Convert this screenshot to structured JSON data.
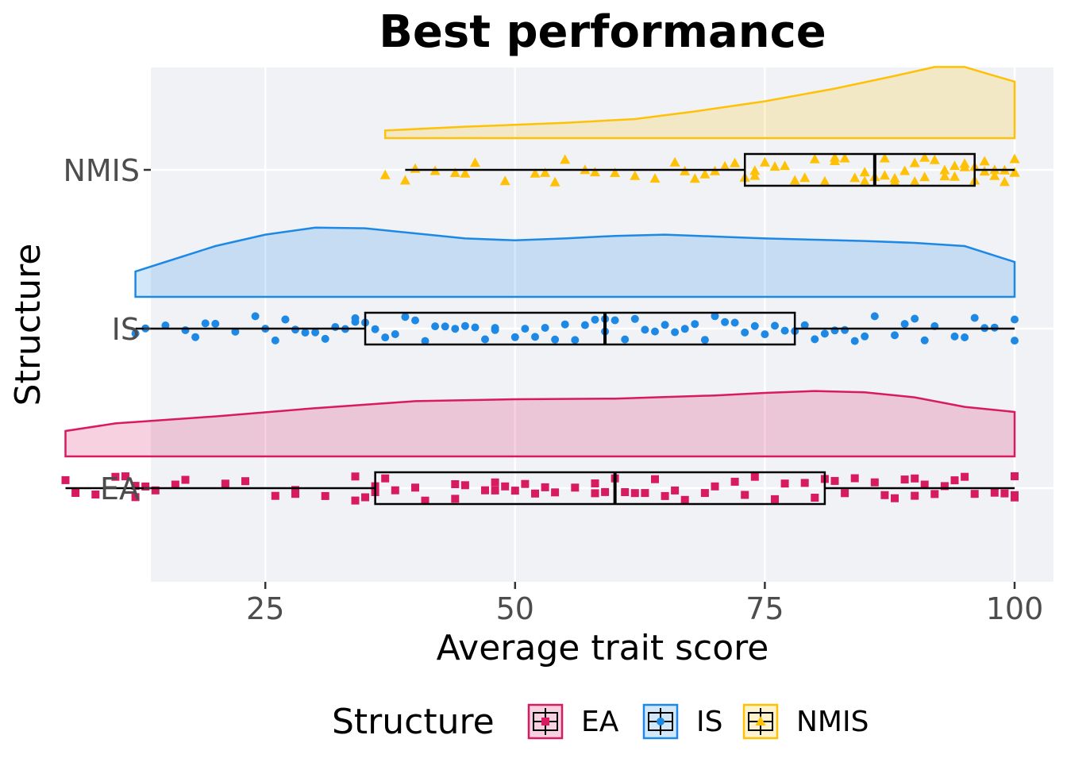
{
  "chart_data": {
    "type": "raincloud",
    "title": "Best performance",
    "xlabel": "Average trait score",
    "ylabel": "Structure",
    "xlim": [
      0,
      102
    ],
    "x_ticks": [
      25,
      50,
      75,
      100
    ],
    "x_tick_labels": [
      "25",
      "50",
      "75",
      "100"
    ],
    "categories": [
      "EA",
      "IS",
      "NMIS"
    ],
    "grid": true,
    "legend": {
      "title": "Structure",
      "placement": "bottom",
      "entries": [
        "EA",
        "IS",
        "NMIS"
      ]
    },
    "series": [
      {
        "name": "EA",
        "color": "#d81b60",
        "marker": "square",
        "box": {
          "min": 5,
          "q1": 36,
          "median": 60,
          "q3": 81,
          "max": 100
        },
        "density": [
          [
            5,
            0.4
          ],
          [
            10,
            0.52
          ],
          [
            20,
            0.63
          ],
          [
            30,
            0.76
          ],
          [
            40,
            0.87
          ],
          [
            50,
            0.9
          ],
          [
            60,
            0.91
          ],
          [
            70,
            0.96
          ],
          [
            75,
            1.0
          ],
          [
            80,
            1.03
          ],
          [
            85,
            1.01
          ],
          [
            90,
            0.93
          ],
          [
            95,
            0.78
          ],
          [
            100,
            0.7
          ]
        ],
        "points": [
          5,
          6,
          8,
          10,
          11,
          12,
          12,
          13,
          14,
          16,
          17,
          21,
          23,
          26,
          28,
          28,
          28,
          31,
          34,
          34,
          35,
          36,
          36,
          37,
          38,
          40,
          41,
          44,
          44,
          45,
          47,
          48,
          48,
          49,
          50,
          51,
          52,
          53,
          54,
          56,
          58,
          58,
          59,
          60,
          61,
          62,
          63,
          64,
          65,
          66,
          67,
          69,
          70,
          72,
          73,
          74,
          76,
          77,
          79,
          80,
          81,
          82,
          83,
          84,
          86,
          87,
          88,
          89,
          90,
          90,
          91,
          92,
          93,
          94,
          95,
          96,
          98,
          99,
          100,
          100,
          100
        ]
      },
      {
        "name": "IS",
        "color": "#1e88e5",
        "marker": "circle",
        "box": {
          "min": 12,
          "q1": 35,
          "median": 59,
          "q3": 78,
          "max": 100
        },
        "density": [
          [
            12,
            0.4
          ],
          [
            15,
            0.55
          ],
          [
            20,
            0.8
          ],
          [
            25,
            0.98
          ],
          [
            30,
            1.09
          ],
          [
            35,
            1.08
          ],
          [
            40,
            1.0
          ],
          [
            45,
            0.92
          ],
          [
            50,
            0.89
          ],
          [
            55,
            0.92
          ],
          [
            60,
            0.96
          ],
          [
            65,
            0.98
          ],
          [
            70,
            0.95
          ],
          [
            75,
            0.92
          ],
          [
            80,
            0.9
          ],
          [
            85,
            0.88
          ],
          [
            90,
            0.85
          ],
          [
            95,
            0.8
          ],
          [
            100,
            0.55
          ]
        ],
        "points": [
          12,
          13,
          15,
          17,
          18,
          19,
          20,
          22,
          24,
          25,
          26,
          27,
          27,
          28,
          29,
          30,
          31,
          32,
          33,
          34,
          34,
          35,
          36,
          37,
          38,
          39,
          40,
          41,
          42,
          43,
          44,
          45,
          46,
          47,
          48,
          48,
          50,
          51,
          52,
          53,
          54,
          55,
          56,
          57,
          58,
          59,
          59,
          60,
          61,
          62,
          63,
          64,
          65,
          66,
          67,
          68,
          69,
          70,
          71,
          72,
          73,
          74,
          75,
          76,
          77,
          78,
          79,
          80,
          81,
          82,
          83,
          84,
          85,
          86,
          88,
          89,
          90,
          91,
          92,
          94,
          95,
          96,
          97,
          98,
          100,
          100
        ]
      },
      {
        "name": "NMIS",
        "color": "#ffc107",
        "marker": "triangle",
        "box": {
          "min": 39,
          "q1": 73,
          "median": 86,
          "q3": 96,
          "max": 100
        },
        "density": [
          [
            37,
            0.12
          ],
          [
            45,
            0.18
          ],
          [
            55,
            0.24
          ],
          [
            62,
            0.3
          ],
          [
            68,
            0.42
          ],
          [
            75,
            0.58
          ],
          [
            82,
            0.78
          ],
          [
            88,
            0.98
          ],
          [
            92,
            1.12
          ],
          [
            95,
            1.12
          ],
          [
            98,
            0.98
          ],
          [
            100,
            0.89
          ]
        ],
        "points": [
          37,
          39,
          40,
          42,
          44,
          45,
          46,
          49,
          52,
          53,
          54,
          55,
          57,
          58,
          60,
          62,
          64,
          66,
          67,
          68,
          69,
          70,
          71,
          72,
          73,
          74,
          74,
          75,
          76,
          77,
          78,
          79,
          80,
          81,
          82,
          82,
          83,
          84,
          85,
          85,
          86,
          87,
          87,
          88,
          88,
          89,
          90,
          90,
          91,
          91,
          92,
          93,
          93,
          94,
          94,
          95,
          95,
          96,
          96,
          97,
          97,
          98,
          98,
          99,
          99,
          100,
          100,
          100
        ]
      }
    ]
  }
}
